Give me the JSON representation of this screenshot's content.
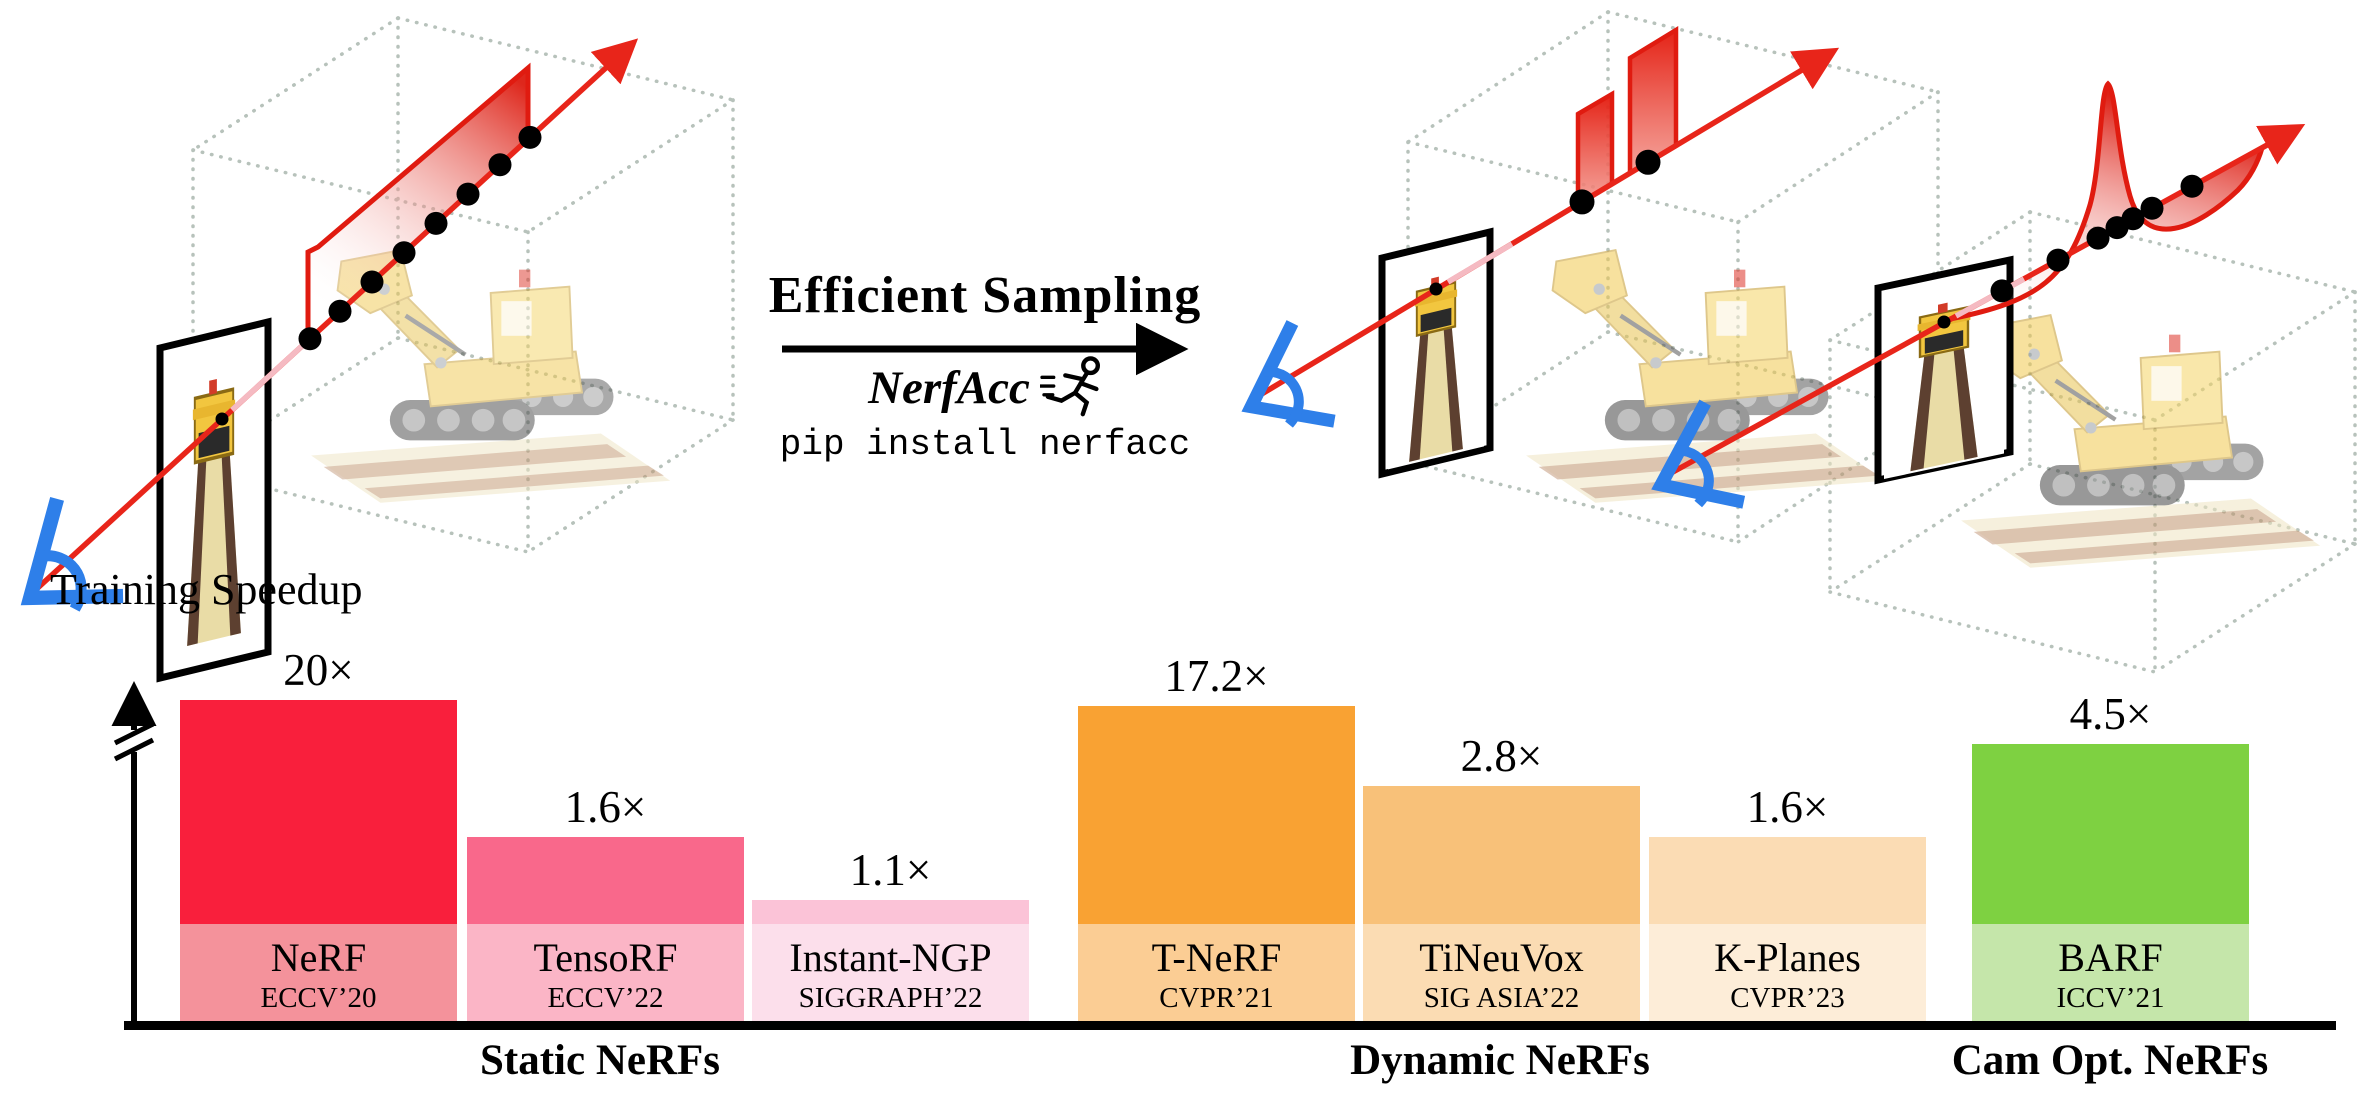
{
  "header": {
    "arrow_label": "Efficient Sampling",
    "logo_text": "NerfAcc",
    "install_command": "pip install nerfacc",
    "icons": {
      "runner": "runner-icon",
      "camera": "camera-icon",
      "ray_arrow": "arrow-right-icon",
      "axis_arrow": "arrow-up-icon"
    }
  },
  "colors": {
    "ray_red": "#e8251a",
    "profile_red": "#dc170b",
    "camera_blue": "#2e7fe9",
    "cube_dash": "#b7c2bb",
    "axis_black": "#000000"
  },
  "chart_data": {
    "type": "bar",
    "title": "Training Speedup",
    "ylabel": "Training Speedup",
    "value_unit": "×",
    "axis_break": true,
    "grid": false,
    "categories": [
      "NeRF",
      "TensoRF",
      "Instant-NGP",
      "T-NeRF",
      "TiNeuVox",
      "K-Planes",
      "BARF"
    ],
    "values": [
      20,
      1.6,
      1.1,
      17.2,
      2.8,
      1.6,
      4.5
    ],
    "groups": [
      {
        "label": "Static NeRFs",
        "bars": [
          {
            "method": "NeRF",
            "venue": "ECCV’20",
            "value": 20,
            "display": "20×",
            "bar_color": "#f91f3c",
            "base_color": "#f4929b"
          },
          {
            "method": "TensoRF",
            "venue": "ECCV’22",
            "value": 1.6,
            "display": "1.6×",
            "bar_color": "#f9688b",
            "base_color": "#fbb5c6"
          },
          {
            "method": "Instant-NGP",
            "venue": "SIGGRAPH’22",
            "value": 1.1,
            "display": "1.1×",
            "bar_color": "#fbc3d7",
            "base_color": "#fcdfeb"
          }
        ]
      },
      {
        "label": "Dynamic NeRFs",
        "bars": [
          {
            "method": "T-NeRF",
            "venue": "CVPR’21",
            "value": 17.2,
            "display": "17.2×",
            "bar_color": "#f9a233",
            "base_color": "#fbcd94"
          },
          {
            "method": "TiNeuVox",
            "venue": "SIG ASIA’22",
            "value": 2.8,
            "display": "2.8×",
            "bar_color": "#f8c179",
            "base_color": "#fbdcb3"
          },
          {
            "method": "K-Planes",
            "venue": "CVPR’23",
            "value": 1.6,
            "display": "1.6×",
            "bar_color": "#fbdcb4",
            "base_color": "#fdedd8"
          }
        ]
      },
      {
        "label": "Cam Opt. NeRFs",
        "bars": [
          {
            "method": "BARF",
            "venue": "ICCV’21",
            "value": 4.5,
            "display": "4.5×",
            "bar_color": "#7ed141",
            "base_color": "#c5e6aa"
          }
        ]
      }
    ]
  }
}
